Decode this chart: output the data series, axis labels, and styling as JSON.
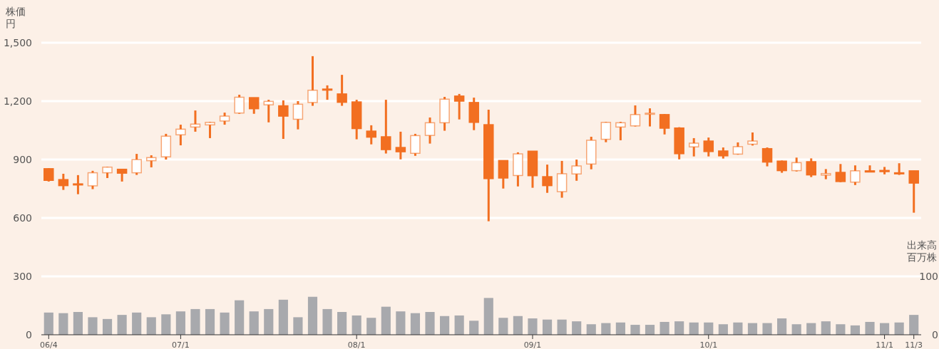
{
  "chart_data": {
    "type": "candlestick",
    "ylabel": "株価円",
    "y2label": "出来高百万株",
    "categories": [
      "06/4",
      null,
      null,
      null,
      null,
      null,
      null,
      null,
      null,
      "07/1",
      null,
      null,
      null,
      null,
      null,
      null,
      null,
      null,
      null,
      null,
      null,
      "08/1",
      null,
      null,
      null,
      null,
      null,
      null,
      null,
      null,
      null,
      null,
      null,
      "09/1",
      null,
      null,
      null,
      null,
      null,
      null,
      null,
      null,
      null,
      null,
      null,
      "10/1",
      null,
      null,
      null,
      null,
      null,
      null,
      null,
      null,
      null,
      null,
      null,
      "11/1",
      null,
      "11/3"
    ],
    "color": "#f26f21",
    "ohlc": [
      [
        853,
        856,
        787,
        793
      ],
      [
        797,
        827,
        744,
        766
      ],
      [
        775,
        820,
        722,
        772
      ],
      [
        765,
        842,
        748,
        832
      ],
      [
        832,
        863,
        805,
        861
      ],
      [
        850,
        851,
        787,
        830
      ],
      [
        832,
        929,
        821,
        900
      ],
      [
        894,
        922,
        860,
        910
      ],
      [
        914,
        1032,
        900,
        1020
      ],
      [
        1027,
        1079,
        973,
        1056
      ],
      [
        1067,
        1152,
        1043,
        1082
      ],
      [
        1078,
        1094,
        1010,
        1091
      ],
      [
        1098,
        1141,
        1079,
        1123
      ],
      [
        1139,
        1233,
        1135,
        1220
      ],
      [
        1218,
        1218,
        1135,
        1161
      ],
      [
        1181,
        1207,
        1091,
        1199
      ],
      [
        1176,
        1204,
        1006,
        1123
      ],
      [
        1107,
        1200,
        1055,
        1184
      ],
      [
        1193,
        1431,
        1176,
        1256
      ],
      [
        1262,
        1281,
        1207,
        1258
      ],
      [
        1237,
        1335,
        1176,
        1194
      ],
      [
        1196,
        1207,
        1004,
        1059
      ],
      [
        1046,
        1076,
        978,
        1015
      ],
      [
        1017,
        1207,
        931,
        951
      ],
      [
        962,
        1043,
        901,
        940
      ],
      [
        932,
        1032,
        919,
        1023
      ],
      [
        1024,
        1116,
        982,
        1089
      ],
      [
        1089,
        1222,
        1048,
        1210
      ],
      [
        1226,
        1237,
        1106,
        1200
      ],
      [
        1193,
        1218,
        1051,
        1091
      ],
      [
        1079,
        1156,
        583,
        802
      ],
      [
        895,
        896,
        751,
        805
      ],
      [
        818,
        937,
        762,
        929
      ],
      [
        943,
        943,
        755,
        817
      ],
      [
        812,
        874,
        729,
        766
      ],
      [
        735,
        893,
        704,
        827
      ],
      [
        826,
        900,
        791,
        867
      ],
      [
        877,
        1017,
        850,
        999
      ],
      [
        1004,
        1094,
        989,
        1091
      ],
      [
        1067,
        1094,
        999,
        1089
      ],
      [
        1073,
        1178,
        1070,
        1131
      ],
      [
        1135,
        1163,
        1070,
        1138
      ],
      [
        1131,
        1134,
        1029,
        1061
      ],
      [
        1062,
        1066,
        901,
        930
      ],
      [
        965,
        1010,
        916,
        984
      ],
      [
        995,
        1013,
        916,
        941
      ],
      [
        944,
        962,
        905,
        919
      ],
      [
        928,
        988,
        925,
        966
      ],
      [
        979,
        1039,
        972,
        995
      ],
      [
        956,
        962,
        865,
        887
      ],
      [
        892,
        895,
        832,
        843
      ],
      [
        843,
        910,
        839,
        884
      ],
      [
        889,
        906,
        810,
        821
      ],
      [
        820,
        851,
        799,
        828
      ],
      [
        834,
        877,
        784,
        787
      ],
      [
        784,
        870,
        769,
        842
      ],
      [
        842,
        870,
        835,
        836
      ],
      [
        844,
        862,
        824,
        838
      ],
      [
        832,
        881,
        821,
        828
      ],
      [
        842,
        842,
        627,
        779
      ]
    ],
    "series": [
      {
        "type": "bar",
        "axis": "y2",
        "color": "#a8a9ad",
        "values": [
          38,
          37,
          39,
          30,
          27,
          34,
          38,
          30,
          35,
          40,
          44,
          44,
          38,
          59,
          40,
          44,
          60,
          30,
          65,
          44,
          39,
          33,
          29,
          48,
          40,
          37,
          39,
          32,
          33,
          24,
          63,
          29,
          32,
          28,
          26,
          26,
          23,
          18,
          20,
          21,
          17,
          17,
          22,
          23,
          21,
          21,
          18,
          21,
          20,
          20,
          28,
          18,
          20,
          23,
          18,
          16,
          22,
          20,
          21,
          34
        ]
      }
    ],
    "ylim": [
      0,
      1500
    ],
    "yticks": [
      0,
      300,
      600,
      900,
      {
        "value": 1200,
        "label": "1,200"
      },
      {
        "value": 1500,
        "label": "1,500"
      }
    ],
    "y2lim": [
      0,
      500
    ],
    "y2ticks": [
      0,
      100
    ],
    "grid": "y"
  }
}
